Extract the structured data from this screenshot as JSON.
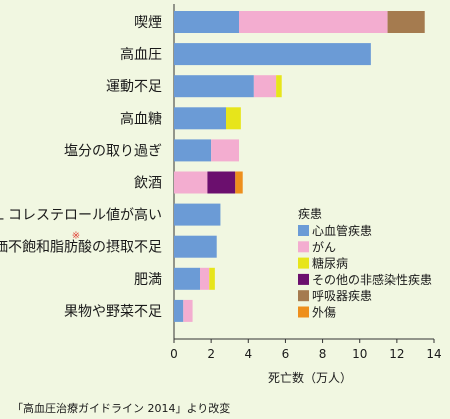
{
  "chart_data": {
    "type": "bar",
    "orientation": "horizontal",
    "stacked": true,
    "categories": [
      "喫煙",
      "高血圧",
      "運動不足",
      "高血糖",
      "塩分の取り過ぎ",
      "飲酒",
      "LDL コレステロール値が高い",
      "多価不飽和脂肪酸の摂取不足",
      "肥満",
      "果物や野菜不足"
    ],
    "category_note": {
      "index": 7,
      "mark": "※"
    },
    "series": [
      {
        "name": "心血管疾患",
        "color": "#6b9bd6",
        "values": [
          3.5,
          10.6,
          4.3,
          2.8,
          2.0,
          0.0,
          2.5,
          2.3,
          1.4,
          0.5
        ]
      },
      {
        "name": "がん",
        "color": "#f3add0",
        "values": [
          8.0,
          0.0,
          1.2,
          0.0,
          1.5,
          1.8,
          0.0,
          0.0,
          0.5,
          0.5
        ]
      },
      {
        "name": "糖尿病",
        "color": "#e7e51b",
        "values": [
          0.0,
          0.0,
          0.3,
          0.8,
          0.0,
          0.0,
          0.0,
          0.0,
          0.3,
          0.0
        ]
      },
      {
        "name": "その他の非感染性疾患",
        "color": "#6b0f6e",
        "values": [
          0.0,
          0.0,
          0.0,
          0.0,
          0.0,
          1.5,
          0.0,
          0.0,
          0.0,
          0.0
        ]
      },
      {
        "name": "呼吸器疾患",
        "color": "#a57b4f",
        "values": [
          2.0,
          0.0,
          0.0,
          0.0,
          0.0,
          0.0,
          0.0,
          0.0,
          0.0,
          0.0
        ]
      },
      {
        "name": "外傷",
        "color": "#ee8f1c",
        "values": [
          0.0,
          0.0,
          0.0,
          0.0,
          0.0,
          0.4,
          0.0,
          0.0,
          0.0,
          0.0
        ]
      }
    ],
    "xlim": [
      0,
      14
    ],
    "xticks": [
      0,
      2,
      4,
      6,
      8,
      10,
      12,
      14
    ],
    "xlabel": "死亡数（万人）",
    "legend_title": "疾患",
    "legend_position": "bottom-right",
    "grid": false
  },
  "source_note": "「高血圧治療ガイドライン 2014」より改変"
}
